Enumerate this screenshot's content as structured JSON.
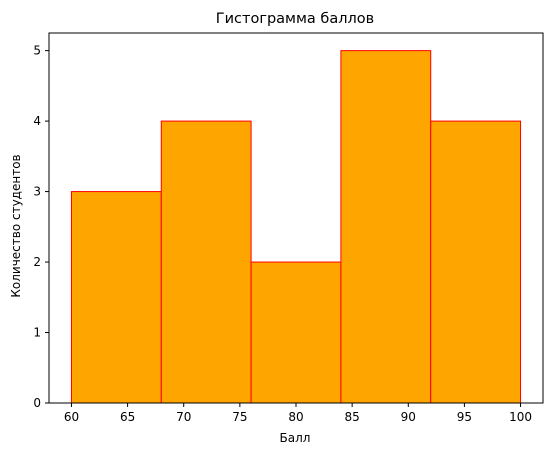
{
  "chart_data": {
    "type": "bar",
    "title": "Гистограмма баллов",
    "xlabel": "Балл",
    "ylabel": "Количество студентов",
    "bins": [
      {
        "start": 60,
        "end": 68,
        "count": 3
      },
      {
        "start": 68,
        "end": 76,
        "count": 4
      },
      {
        "start": 76,
        "end": 84,
        "count": 2
      },
      {
        "start": 84,
        "end": 92,
        "count": 5
      },
      {
        "start": 92,
        "end": 100,
        "count": 4
      }
    ],
    "xlim": [
      58,
      102
    ],
    "ylim": [
      0,
      5.25
    ],
    "xticks": [
      60,
      65,
      70,
      75,
      80,
      85,
      90,
      95,
      100
    ],
    "yticks": [
      0,
      1,
      2,
      3,
      4,
      5
    ],
    "grid": false,
    "bar_fill": "#ffa500",
    "bar_edge": "#ff0000"
  }
}
